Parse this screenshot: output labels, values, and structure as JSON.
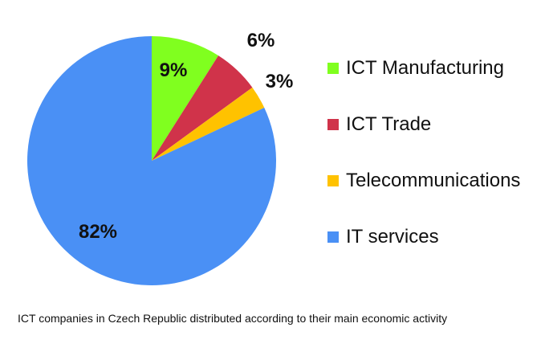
{
  "chart_data": {
    "type": "pie",
    "title": "",
    "categories": [
      "ICT Manufacturing",
      "ICT Trade",
      "Telecommunications",
      "IT services"
    ],
    "values": [
      9,
      6,
      3,
      82
    ],
    "value_labels": [
      "9%",
      "6%",
      "3%",
      "82%"
    ],
    "colors": [
      "#80ff1f",
      "#d0334a",
      "#ffc200",
      "#4a90f5"
    ],
    "start_angle_deg": 0,
    "direction": "clockwise",
    "legend_position": "right"
  },
  "caption": "ICT companies in Czech Republic distributed according to their main economic activity"
}
